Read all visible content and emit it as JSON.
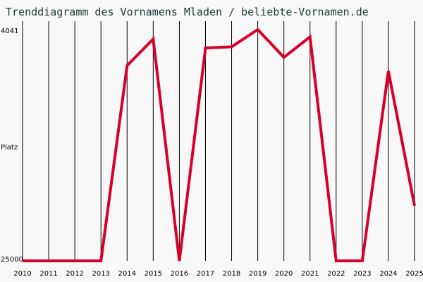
{
  "colors": {
    "background": "#f8f8f8",
    "line": "#d6002a",
    "grid": "#000000",
    "title": "#1b3a35"
  },
  "chart_data": {
    "type": "line",
    "title": "Trenddiagramm des Vornamens Mladen / beliebte-Vornamen.de",
    "xlabel": "",
    "ylabel": "Platz",
    "y_axis_inverted": true,
    "ylim": [
      25000,
      4041
    ],
    "y_tick_labels": [
      "4041",
      "25000"
    ],
    "x": [
      "2010",
      "2011",
      "2012",
      "2013",
      "2014",
      "2015",
      "2016",
      "2017",
      "2018",
      "2019",
      "2020",
      "2021",
      "2022",
      "2023",
      "2024",
      "2025"
    ],
    "series": [
      {
        "values": [
          25000,
          25000,
          25000,
          25000,
          7300,
          4900,
          25000,
          5700,
          5600,
          4041,
          6550,
          4700,
          25000,
          25000,
          7800,
          20000
        ]
      }
    ],
    "grid": "vertical"
  }
}
